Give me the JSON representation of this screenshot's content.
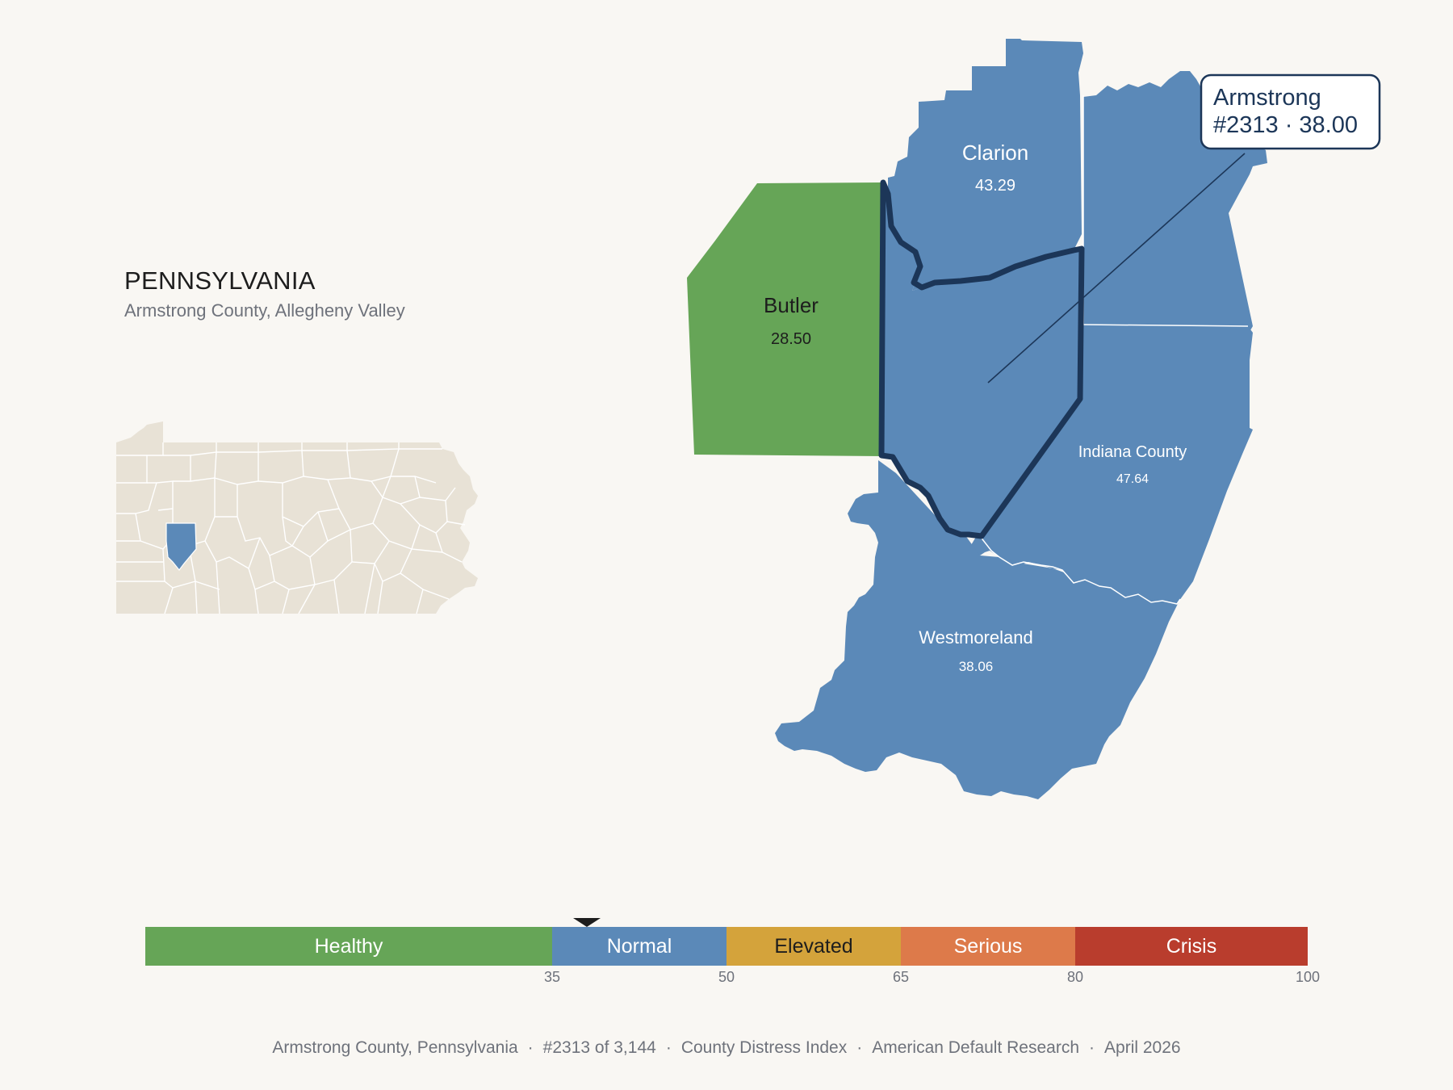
{
  "header": {
    "state": "PENNSYLVANIA",
    "subtitle": "Armstrong County, Allegheny Valley"
  },
  "colors": {
    "background": "#f9f7f3",
    "healthy": "#66a557",
    "normal": "#5b89b8",
    "elevated": "#d4a33b",
    "serious": "#dd7a4a",
    "crisis": "#b93d2d",
    "inset_fill": "#e8e2d6",
    "highlight_outline": "#1c3658"
  },
  "counties": {
    "clarion": {
      "name": "Clarion",
      "score": "43.29",
      "tier": "normal"
    },
    "butler": {
      "name": "Butler",
      "score": "28.50",
      "tier": "healthy"
    },
    "indiana": {
      "name": "Indiana County",
      "score": "47.64",
      "tier": "normal"
    },
    "westmoreland": {
      "name": "Westmoreland",
      "score": "38.06",
      "tier": "normal"
    },
    "jefferson": {
      "name": "",
      "score": "",
      "tier": "normal"
    },
    "armstrong": {
      "name": "Armstrong",
      "score": "38.00",
      "tier": "normal",
      "highlighted": true
    }
  },
  "callout": {
    "line1": "Armstrong",
    "line2": "#2313 · 38.00"
  },
  "scale": {
    "min": 0,
    "max": 100,
    "marker_value": 38.0,
    "segments": [
      {
        "label": "Healthy",
        "from": 0,
        "to": 35,
        "color": "#66a557",
        "text_color": "#ffffff"
      },
      {
        "label": "Normal",
        "from": 35,
        "to": 50,
        "color": "#5b89b8",
        "text_color": "#ffffff"
      },
      {
        "label": "Elevated",
        "from": 50,
        "to": 65,
        "color": "#d4a33b",
        "text_color": "#1d1d1d"
      },
      {
        "label": "Serious",
        "from": 65,
        "to": 80,
        "color": "#dd7a4a",
        "text_color": "#ffffff"
      },
      {
        "label": "Crisis",
        "from": 80,
        "to": 100,
        "color": "#b93d2d",
        "text_color": "#ffffff"
      }
    ],
    "ticks": [
      "35",
      "50",
      "65",
      "80",
      "100"
    ]
  },
  "footer": {
    "county": "Armstrong County, Pennsylvania",
    "rank": "#2313 of 3,144",
    "index": "County Distress Index",
    "publisher": "American Default Research",
    "date": "April 2026",
    "separator": "·"
  }
}
